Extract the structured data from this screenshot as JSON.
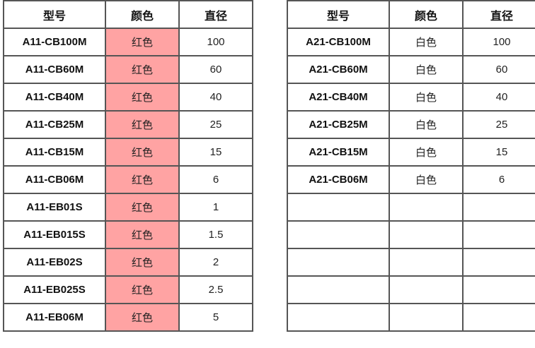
{
  "colors": {
    "red_cell": "#ffa3a3",
    "border": "#555555"
  },
  "left_table": {
    "headers": [
      "型号",
      "颜色",
      "直径"
    ],
    "rows": [
      [
        "A11-CB100M",
        "红色",
        "100"
      ],
      [
        "A11-CB60M",
        "红色",
        "60"
      ],
      [
        "A11-CB40M",
        "红色",
        "40"
      ],
      [
        "A11-CB25M",
        "红色",
        "25"
      ],
      [
        "A11-CB15M",
        "红色",
        "15"
      ],
      [
        "A11-CB06M",
        "红色",
        "6"
      ],
      [
        "A11-EB01S",
        "红色",
        "1"
      ],
      [
        "A11-EB015S",
        "红色",
        "1.5"
      ],
      [
        "A11-EB02S",
        "红色",
        "2"
      ],
      [
        "A11-EB025S",
        "红色",
        "2.5"
      ],
      [
        "A11-EB06M",
        "红色",
        "5"
      ]
    ]
  },
  "right_table": {
    "headers": [
      "型号",
      "颜色",
      "直径"
    ],
    "rows": [
      [
        "A21-CB100M",
        "白色",
        "100"
      ],
      [
        "A21-CB60M",
        "白色",
        "60"
      ],
      [
        "A21-CB40M",
        "白色",
        "40"
      ],
      [
        "A21-CB25M",
        "白色",
        "25"
      ],
      [
        "A21-CB15M",
        "白色",
        "15"
      ],
      [
        "A21-CB06M",
        "白色",
        "6"
      ],
      [
        "",
        "",
        ""
      ],
      [
        "",
        "",
        ""
      ],
      [
        "",
        "",
        ""
      ],
      [
        "",
        "",
        ""
      ],
      [
        "",
        "",
        ""
      ]
    ]
  }
}
